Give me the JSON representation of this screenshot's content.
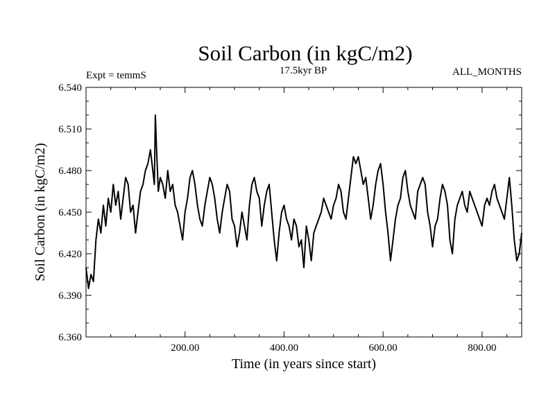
{
  "chart_data": {
    "type": "line",
    "title": "Soil Carbon (in kgC/m2)",
    "subtitle": "17.5kyr BP",
    "annotation_left": "Expt = temmS",
    "annotation_right": "ALL_MONTHS",
    "xlabel": "Time (in years since start)",
    "ylabel": "Soil Carbon (in kgC/m2)",
    "xlim": [
      0,
      880
    ],
    "ylim": [
      6.36,
      6.54
    ],
    "x_ticks": [
      200,
      400,
      600,
      800
    ],
    "x_tick_labels": [
      "200.00",
      "400.00",
      "600.00",
      "800.00"
    ],
    "y_ticks": [
      6.36,
      6.39,
      6.42,
      6.45,
      6.48,
      6.51,
      6.54
    ],
    "y_tick_labels": [
      "6.360",
      "6.390",
      "6.420",
      "6.450",
      "6.480",
      "6.510",
      "6.540"
    ],
    "series": [
      {
        "name": "Soil Carbon",
        "x": [
          0,
          5,
          10,
          15,
          20,
          25,
          30,
          35,
          40,
          45,
          50,
          55,
          60,
          65,
          70,
          75,
          80,
          85,
          90,
          95,
          100,
          105,
          110,
          115,
          120,
          125,
          130,
          135,
          138,
          140,
          143,
          146,
          150,
          155,
          160,
          165,
          170,
          175,
          180,
          185,
          190,
          195,
          200,
          205,
          210,
          215,
          220,
          225,
          230,
          235,
          240,
          245,
          250,
          255,
          260,
          265,
          270,
          275,
          280,
          285,
          290,
          295,
          300,
          305,
          310,
          315,
          320,
          325,
          330,
          335,
          340,
          345,
          350,
          355,
          360,
          365,
          370,
          375,
          380,
          385,
          390,
          395,
          400,
          405,
          410,
          415,
          420,
          425,
          430,
          435,
          440,
          445,
          450,
          455,
          460,
          465,
          470,
          475,
          480,
          485,
          490,
          495,
          500,
          505,
          510,
          515,
          520,
          525,
          530,
          535,
          540,
          545,
          550,
          555,
          560,
          565,
          570,
          575,
          580,
          585,
          590,
          595,
          600,
          605,
          610,
          615,
          620,
          625,
          630,
          635,
          640,
          645,
          650,
          655,
          660,
          665,
          670,
          675,
          680,
          685,
          690,
          695,
          700,
          705,
          710,
          715,
          720,
          725,
          730,
          735,
          740,
          745,
          750,
          755,
          760,
          765,
          770,
          775,
          780,
          785,
          790,
          795,
          800,
          805,
          810,
          815,
          820,
          825,
          830,
          835,
          840,
          845,
          850,
          855,
          860,
          865,
          870,
          875,
          880
        ],
        "y": [
          6.41,
          6.395,
          6.405,
          6.4,
          6.43,
          6.445,
          6.435,
          6.455,
          6.44,
          6.46,
          6.45,
          6.47,
          6.455,
          6.465,
          6.445,
          6.46,
          6.475,
          6.47,
          6.45,
          6.455,
          6.435,
          6.45,
          6.465,
          6.47,
          6.48,
          6.485,
          6.495,
          6.48,
          6.47,
          6.52,
          6.49,
          6.465,
          6.475,
          6.47,
          6.46,
          6.48,
          6.465,
          6.47,
          6.455,
          6.45,
          6.44,
          6.43,
          6.45,
          6.46,
          6.475,
          6.48,
          6.47,
          6.455,
          6.445,
          6.44,
          6.455,
          6.465,
          6.475,
          6.47,
          6.46,
          6.445,
          6.435,
          6.45,
          6.46,
          6.47,
          6.465,
          6.445,
          6.44,
          6.425,
          6.435,
          6.45,
          6.44,
          6.43,
          6.455,
          6.47,
          6.475,
          6.465,
          6.46,
          6.44,
          6.455,
          6.465,
          6.47,
          6.45,
          6.43,
          6.415,
          6.435,
          6.45,
          6.455,
          6.445,
          6.44,
          6.43,
          6.445,
          6.44,
          6.425,
          6.43,
          6.41,
          6.44,
          6.43,
          6.415,
          6.435,
          6.44,
          6.445,
          6.45,
          6.46,
          6.455,
          6.45,
          6.445,
          6.455,
          6.46,
          6.47,
          6.465,
          6.45,
          6.445,
          6.46,
          6.475,
          6.49,
          6.485,
          6.49,
          6.48,
          6.47,
          6.475,
          6.46,
          6.445,
          6.455,
          6.47,
          6.48,
          6.485,
          6.47,
          6.45,
          6.435,
          6.415,
          6.43,
          6.445,
          6.455,
          6.46,
          6.475,
          6.48,
          6.465,
          6.455,
          6.45,
          6.445,
          6.465,
          6.47,
          6.475,
          6.47,
          6.45,
          6.44,
          6.425,
          6.44,
          6.445,
          6.46,
          6.47,
          6.465,
          6.455,
          6.43,
          6.42,
          6.445,
          6.455,
          6.46,
          6.465,
          6.455,
          6.45,
          6.465,
          6.46,
          6.455,
          6.45,
          6.445,
          6.44,
          6.455,
          6.46,
          6.455,
          6.465,
          6.47,
          6.46,
          6.455,
          6.45,
          6.445,
          6.46,
          6.475,
          6.455,
          6.43,
          6.415,
          6.42,
          6.435
        ]
      }
    ]
  }
}
